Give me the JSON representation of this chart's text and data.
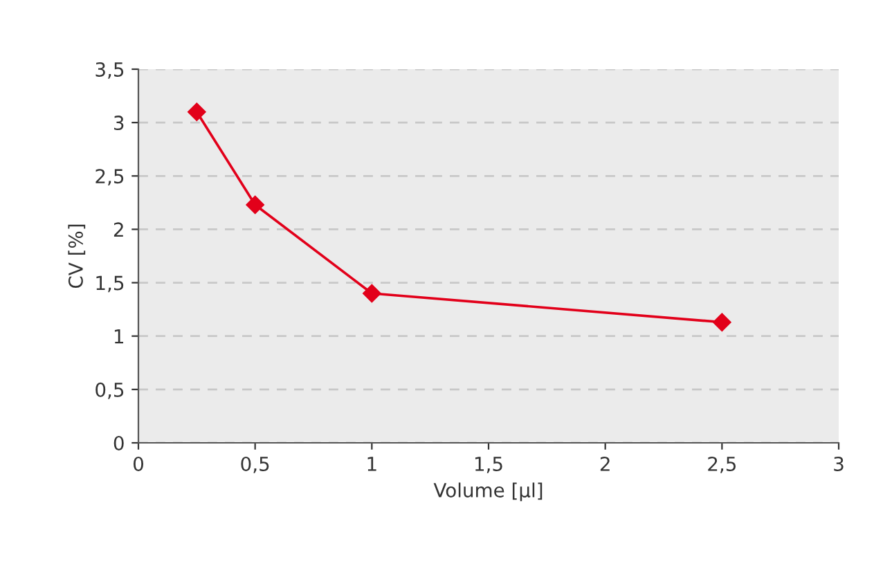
{
  "chart_data": {
    "type": "line",
    "xlabel": "Volume [µl]",
    "ylabel": "CV [%]",
    "x": [
      0.25,
      0.5,
      1,
      2.5
    ],
    "series": [
      {
        "color": "#e2001a",
        "values": [
          3.1,
          2.23,
          1.4,
          1.13
        ]
      }
    ],
    "xlim": [
      0,
      3
    ],
    "ylim": [
      0,
      3.5
    ],
    "xticks": [
      0,
      {
        "value": 0.5,
        "label": "0,5"
      },
      1,
      {
        "value": 1.5,
        "label": "1,5"
      },
      2,
      {
        "value": 2.5,
        "label": "2,5"
      },
      3
    ],
    "yticks": [
      0,
      {
        "value": 0.5,
        "label": "0,5"
      },
      1,
      {
        "value": 1.5,
        "label": "1,5"
      },
      2,
      {
        "value": 2.5,
        "label": "2,5"
      },
      3,
      {
        "value": 3.5,
        "label": "3,5"
      }
    ],
    "grid": "y",
    "marker": "diamond",
    "line_style": "solid"
  }
}
